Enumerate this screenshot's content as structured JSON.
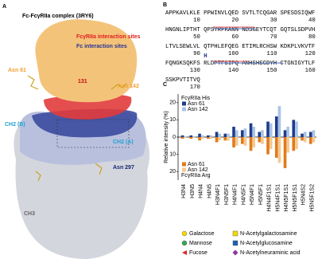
{
  "panel_a": {
    "label": "A",
    "title": "Fc-FcγRIIa complex (3RY6)",
    "annotations": [
      "FcγRIIa interaction sites",
      "Fc interaction sites",
      "131",
      "Asn 61",
      "Asn 142",
      "CH2 (B)",
      "CH2 (A)",
      "Asn 297",
      "CH3"
    ]
  },
  "panel_b": {
    "label": "B",
    "marker": "H",
    "lines": [
      {
        "text": "APPKAVLKLE PPWINVLQED SVTLTCQGAR SPESDSIQWF",
        "numbers": [
          10,
          20,
          30,
          40
        ]
      },
      {
        "text": "HNGNLIPTHT QPSYRFKANN NDSGEYTCQT GQTSLSDPVH",
        "numbers": [
          50,
          60,
          70,
          80
        ]
      },
      {
        "text": "LTVLSEWLVL QTPHLEFQEG ETIMLRCHSW KDKPLVKVTF",
        "numbers": [
          90,
          100,
          110,
          120
        ]
      },
      {
        "text": "FQNGKSQKFS RLDPTFSIPQ ANHSHSGDYH CTGNIGYTLF",
        "numbers": [
          130,
          140,
          150,
          160
        ]
      },
      {
        "text": "SSKPVTITVQ",
        "numbers": [
          170
        ]
      }
    ]
  },
  "panel_c_label": "C",
  "chart_data": {
    "type": "bar",
    "y_label": "Relative intensity (%)",
    "categories": [
      "H3N4",
      "H3N5",
      "H4N4",
      "H4N5",
      "H3N4F1",
      "H3N5F1",
      "H4N4F1",
      "H4N5F1",
      "H5N4F1",
      "H5N5F1",
      "H4N4F1S1",
      "H5N4F1S1",
      "H4N5F1S1",
      "H5N5F1S1",
      "H5N4S2",
      "H5N5F1S2"
    ],
    "legend_titles": [
      "FcγRIIa His",
      "FcγRIIa Arg"
    ],
    "series": [
      {
        "name": "Asn 61",
        "color": "#1f3c88",
        "values": [
          1,
          1,
          2,
          1,
          3,
          2,
          6,
          4,
          8,
          3,
          9,
          12,
          4,
          10,
          2,
          3
        ]
      },
      {
        "name": "Asn 142",
        "color": "#a9c4e8",
        "values": [
          0.5,
          0.5,
          1,
          1,
          2,
          2,
          4,
          5,
          6,
          4,
          8,
          18,
          6,
          9,
          3,
          4
        ]
      },
      {
        "name": "Asn 61",
        "color": "#e07b1a",
        "values": [
          -1,
          -1,
          -2,
          -1,
          -3,
          -2,
          -6,
          -4,
          -8,
          -3,
          -10,
          -12,
          -18,
          -8,
          -2,
          -4
        ]
      },
      {
        "name": "Asn 142",
        "color": "#f6c990",
        "values": [
          -0.5,
          -0.5,
          -1,
          -1,
          -2,
          -2,
          -5,
          -5,
          -6,
          -4,
          -7,
          -15,
          -9,
          -7,
          -3,
          -3
        ]
      }
    ],
    "ylim": [
      -25,
      25
    ],
    "yticks": [
      20,
      10,
      0,
      {
        "value": -10,
        "label": "10"
      },
      {
        "value": -20,
        "label": "20"
      }
    ]
  },
  "glycan_legend": [
    "Galactose",
    "N-Acetylgalactosamine",
    "Mannose",
    "N-Acetylglucosamine",
    "Fucose",
    "N-Acetylneuraminic acid"
  ]
}
